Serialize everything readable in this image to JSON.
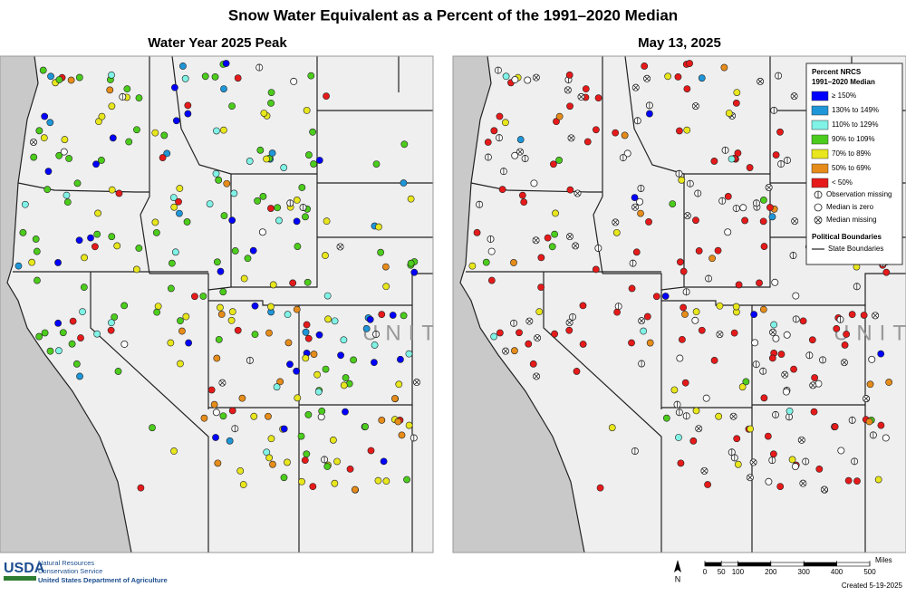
{
  "title": "Snow Water Equivalent as a Percent of the 1991–2020 Median",
  "panels": [
    {
      "title": "Water Year 2025 Peak"
    },
    {
      "title": "May 13, 2025"
    }
  ],
  "map_label": "UNITED STATES",
  "legend": {
    "title": [
      "Percent NRCS",
      "1991–2020 Median"
    ],
    "classes": [
      {
        "label": "≥ 150%",
        "color": "#0000ff"
      },
      {
        "label": "130% to 149%",
        "color": "#1e96d8"
      },
      {
        "label": "110% to 129%",
        "color": "#80f2e6"
      },
      {
        "label": "90% to 109%",
        "color": "#4ccc1c"
      },
      {
        "label": "70% to 89%",
        "color": "#e8e61c"
      },
      {
        "label": "50% to 69%",
        "color": "#e68c1a"
      },
      {
        "label": "< 50%",
        "color": "#e61a1a"
      }
    ],
    "symbols": [
      {
        "label": "Observation missing",
        "symbol": "line"
      },
      {
        "label": "Median is zero",
        "symbol": "circle"
      },
      {
        "label": "Median missing",
        "symbol": "cross"
      }
    ],
    "boundaries_title": "Political Boundaries",
    "boundaries": [
      {
        "label": "State Boundaries"
      }
    ]
  },
  "footer": {
    "agency": "USDA",
    "agency_lines": [
      "Natural Resources",
      "Conservation Service"
    ],
    "department": "United States Department of Agriculture",
    "north": "N",
    "scale": {
      "unit": "Miles",
      "ticks": [
        0,
        50,
        100,
        200,
        300,
        400,
        500
      ]
    },
    "created": "Created 5-19-2025"
  }
}
